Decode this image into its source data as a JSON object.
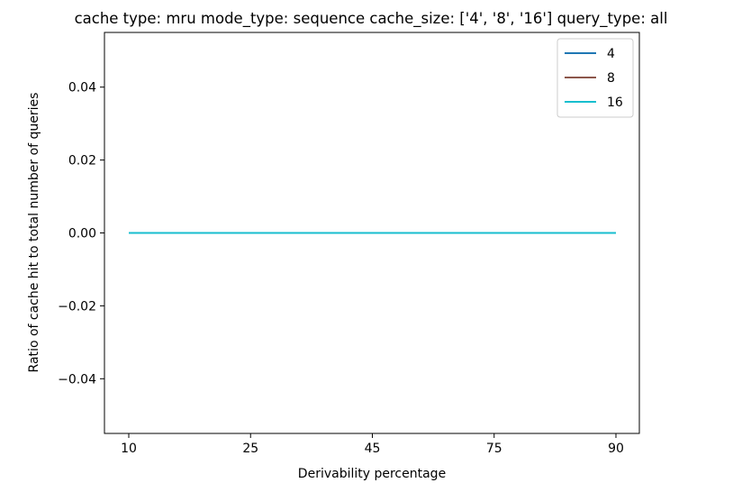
{
  "chart_data": {
    "type": "line",
    "title": "cache type: mru mode_type: sequence cache_size: ['4', '8', '16'] query_type: all",
    "xlabel": "Derivability percentage",
    "ylabel": "Ratio of cache hit to total number of queries",
    "categories": [
      "10",
      "25",
      "45",
      "75",
      "90"
    ],
    "ylim": [
      -0.055,
      0.055
    ],
    "yticks": [
      -0.04,
      -0.02,
      0.0,
      0.02,
      0.04
    ],
    "ytick_labels": [
      "−0.04",
      "−0.02",
      "0.00",
      "0.02",
      "0.04"
    ],
    "grid": false,
    "legend_position": "top-right",
    "series": [
      {
        "name": "4",
        "color": "#1f77b4",
        "values": [
          0,
          0,
          0,
          0,
          0
        ]
      },
      {
        "name": "8",
        "color": "#8c564b",
        "values": [
          0,
          0,
          0,
          0,
          0
        ]
      },
      {
        "name": "16",
        "color": "#17becf",
        "values": [
          0,
          0,
          0,
          0,
          0
        ]
      }
    ]
  }
}
